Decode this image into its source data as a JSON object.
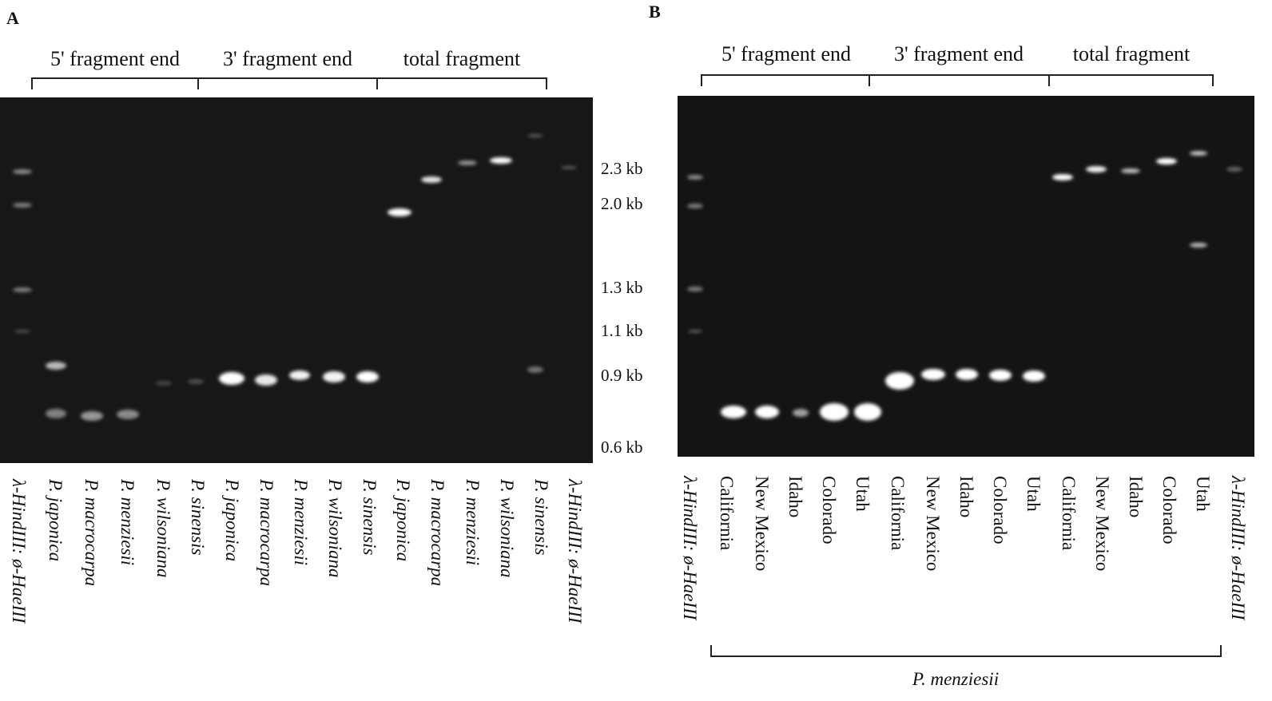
{
  "panels": [
    {
      "label": "A",
      "groups": [
        "5' fragment end",
        "3' fragment end",
        "total fragment"
      ],
      "size_markers": [
        "2.3 kb",
        "2.0 kb",
        "1.3 kb",
        "1.1 kb",
        "0.9 kb",
        "0.6 kb"
      ],
      "lanes": [
        "λ-HindIII: ø-HaeIII",
        "P. japonica",
        "P. macrocarpa",
        "P. menziesii",
        "P. wilsoniana",
        "P. sinensis",
        "P. japonica",
        "P. macrocarpa",
        "P. menziesii",
        "P. wilsoniana",
        "P. sinensis",
        "P. japonica",
        "P. macrocarpa",
        "P. menziesii",
        "P. wilsoniana",
        "P. sinensis",
        "λ-HindIII: ø-HaeIII"
      ]
    },
    {
      "label": "B",
      "groups": [
        "5' fragment end",
        "3' fragment end",
        "total fragment"
      ],
      "lanes": [
        "λ-HindIII: ø-HaeIII",
        "California",
        "New Mexico",
        "Idaho",
        "Colorado",
        "Utah",
        "California",
        "New Mexico",
        "Idaho",
        "Colorado",
        "Utah",
        "California",
        "New Mexico",
        "Idaho",
        "Colorado",
        "Utah",
        "λ-HindIII: ø-HaeIII"
      ],
      "species": "P. menziesii"
    }
  ]
}
